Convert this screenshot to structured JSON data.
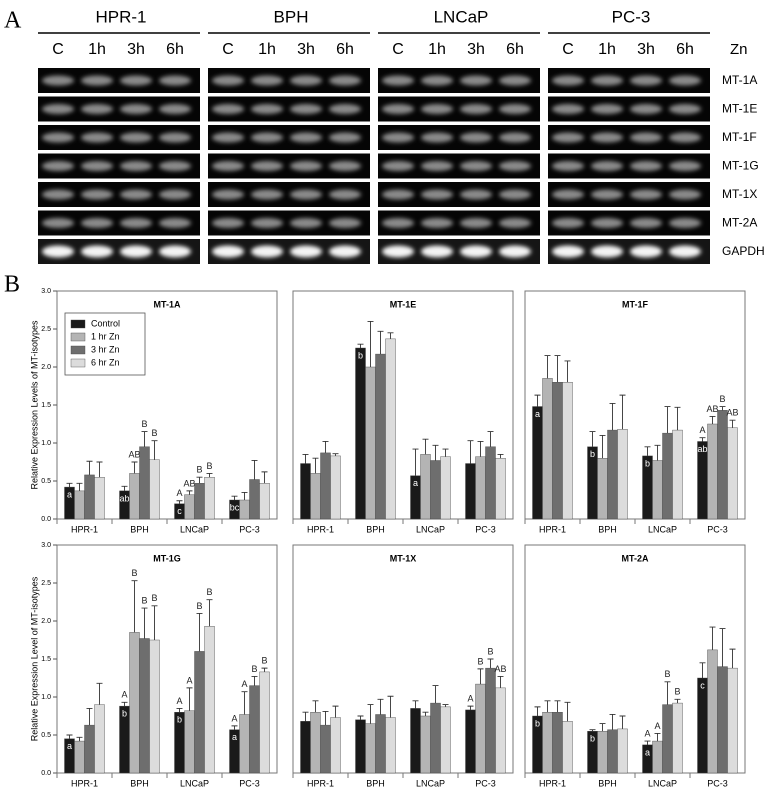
{
  "panel_labels": [
    "A",
    "B"
  ],
  "gel": {
    "cell_lines": [
      "HPR-1",
      "BPH",
      "LNCaP",
      "PC-3"
    ],
    "timepoints": [
      "C",
      "1h",
      "3h",
      "6h"
    ],
    "treatment": "Zn",
    "genes": [
      "MT-1A",
      "MT-1E",
      "MT-1F",
      "MT-1G",
      "MT-1X",
      "MT-2A",
      "GAPDH"
    ]
  },
  "chart_data": [
    {
      "type": "bar",
      "title": "MT-1A",
      "ylabel": "Relative Expression Levels of MT-isotypes",
      "categories": [
        "HPR-1",
        "BPH",
        "LNCaP",
        "PC-3"
      ],
      "ylim": [
        0,
        3
      ],
      "yticks": [
        {
          "value": 0,
          "label": "0.0"
        },
        0.5,
        {
          "value": 1,
          "label": "1.0"
        },
        1.5,
        {
          "value": 2,
          "label": "2.0"
        },
        2.5,
        {
          "value": 3,
          "label": "3.0"
        }
      ],
      "legend": "upper left",
      "series": [
        {
          "name": "Control",
          "color": "#1a1a1a",
          "values": [
            0.42,
            0.37,
            0.2,
            0.25
          ],
          "errors": [
            0.05,
            0.06,
            0.04,
            0.05
          ],
          "labels_inside": [
            "a",
            "ab",
            "c",
            "bc"
          ],
          "labels_above": [
            null,
            null,
            "A",
            null
          ]
        },
        {
          "name": "1 hr Zn",
          "color": "#b4b4b4",
          "values": [
            0.37,
            0.6,
            0.32,
            0.25
          ],
          "errors": [
            0.1,
            0.15,
            0.05,
            0.1
          ],
          "labels_inside": [
            null,
            null,
            null,
            null
          ],
          "labels_above": [
            null,
            "AB",
            "AB",
            null
          ]
        },
        {
          "name": "3 hr Zn",
          "color": "#6e6e6e",
          "values": [
            0.58,
            0.95,
            0.47,
            0.52
          ],
          "errors": [
            0.18,
            0.2,
            0.08,
            0.25
          ],
          "labels_inside": [
            null,
            null,
            null,
            null
          ],
          "labels_above": [
            null,
            "B",
            "B",
            null
          ]
        },
        {
          "name": "6 hr Zn",
          "color": "#dcdcdc",
          "values": [
            0.55,
            0.78,
            0.55,
            0.47
          ],
          "errors": [
            0.2,
            0.25,
            0.05,
            0.15
          ],
          "labels_inside": [
            null,
            null,
            null,
            null
          ],
          "labels_above": [
            null,
            "B",
            "B",
            null
          ]
        }
      ]
    },
    {
      "type": "bar",
      "title": "MT-1E",
      "categories": [
        "HPR-1",
        "BPH",
        "LNCaP",
        "PC-3"
      ],
      "ylim": [
        0,
        3
      ],
      "series": [
        {
          "color": "#1a1a1a",
          "values": [
            0.73,
            2.25,
            0.57,
            0.73
          ],
          "errors": [
            0.12,
            0.05,
            0.35,
            0.3
          ],
          "labels_inside": [
            null,
            "b",
            "a",
            null
          ],
          "labels_above": [
            null,
            null,
            null,
            null
          ]
        },
        {
          "color": "#b4b4b4",
          "values": [
            0.6,
            2.0,
            0.85,
            0.82
          ],
          "errors": [
            0.2,
            0.6,
            0.2,
            0.2
          ],
          "labels_inside": [
            null,
            null,
            null,
            null
          ],
          "labels_above": [
            null,
            null,
            null,
            null
          ]
        },
        {
          "color": "#6e6e6e",
          "values": [
            0.87,
            2.17,
            0.77,
            0.95
          ],
          "errors": [
            0.15,
            0.3,
            0.2,
            0.2
          ],
          "labels_inside": [
            null,
            null,
            null,
            null
          ],
          "labels_above": [
            null,
            null,
            null,
            null
          ]
        },
        {
          "color": "#dcdcdc",
          "values": [
            0.83,
            2.37,
            0.82,
            0.8
          ],
          "errors": [
            0.03,
            0.08,
            0.1,
            0.05
          ],
          "labels_inside": [
            null,
            null,
            null,
            null
          ],
          "labels_above": [
            null,
            null,
            null,
            null
          ]
        }
      ]
    },
    {
      "type": "bar",
      "title": "MT-1F",
      "categories": [
        "HPR-1",
        "BPH",
        "LNCaP",
        "PC-3"
      ],
      "ylim": [
        0,
        3
      ],
      "series": [
        {
          "color": "#1a1a1a",
          "values": [
            1.48,
            0.95,
            0.83,
            1.02
          ],
          "errors": [
            0.15,
            0.2,
            0.12,
            0.05
          ],
          "labels_inside": [
            "a",
            "b",
            "b",
            "ab"
          ],
          "labels_above": [
            null,
            null,
            null,
            "A"
          ]
        },
        {
          "color": "#b4b4b4",
          "values": [
            1.85,
            0.8,
            0.77,
            1.25
          ],
          "errors": [
            0.3,
            0.3,
            0.2,
            0.1
          ],
          "labels_inside": [
            null,
            null,
            null,
            null
          ],
          "labels_above": [
            null,
            null,
            null,
            "AB"
          ]
        },
        {
          "color": "#6e6e6e",
          "values": [
            1.8,
            1.17,
            1.13,
            1.43
          ],
          "errors": [
            0.35,
            0.35,
            0.35,
            0.05
          ],
          "labels_inside": [
            null,
            null,
            null,
            null
          ],
          "labels_above": [
            null,
            null,
            null,
            "B"
          ]
        },
        {
          "color": "#dcdcdc",
          "values": [
            1.8,
            1.18,
            1.17,
            1.2
          ],
          "errors": [
            0.28,
            0.45,
            0.3,
            0.1
          ],
          "labels_inside": [
            null,
            null,
            null,
            null
          ],
          "labels_above": [
            null,
            null,
            null,
            "AB"
          ]
        }
      ]
    },
    {
      "type": "bar",
      "title": "MT-1G",
      "ylabel": "Relative Expression Level of MT-isotypes",
      "categories": [
        "HPR-1",
        "BPH",
        "LNCaP",
        "PC-3"
      ],
      "ylim": [
        0,
        3
      ],
      "yticks": [
        {
          "value": 0,
          "label": "0.0"
        },
        0.5,
        {
          "value": 1,
          "label": "1.0"
        },
        1.5,
        {
          "value": 2,
          "label": "2.0"
        },
        2.5,
        {
          "value": 3,
          "label": "3.0"
        }
      ],
      "series": [
        {
          "color": "#1a1a1a",
          "values": [
            0.45,
            0.88,
            0.8,
            0.57
          ],
          "errors": [
            0.05,
            0.05,
            0.05,
            0.05
          ],
          "labels_inside": [
            "a",
            "b",
            "b",
            "a"
          ],
          "labels_above": [
            null,
            "A",
            "A",
            "A"
          ]
        },
        {
          "color": "#b4b4b4",
          "values": [
            0.42,
            1.85,
            0.82,
            0.77
          ],
          "errors": [
            0.05,
            0.68,
            0.3,
            0.3
          ],
          "labels_inside": [
            null,
            null,
            null,
            null
          ],
          "labels_above": [
            null,
            "B",
            "A",
            "A"
          ]
        },
        {
          "color": "#6e6e6e",
          "values": [
            0.63,
            1.77,
            1.6,
            1.15
          ],
          "errors": [
            0.22,
            0.4,
            0.5,
            0.12
          ],
          "labels_inside": [
            null,
            null,
            null,
            null
          ],
          "labels_above": [
            null,
            "B",
            "B",
            "B"
          ]
        },
        {
          "color": "#dcdcdc",
          "values": [
            0.9,
            1.75,
            1.93,
            1.33
          ],
          "errors": [
            0.28,
            0.45,
            0.35,
            0.05
          ],
          "labels_inside": [
            null,
            null,
            null,
            null
          ],
          "labels_above": [
            null,
            "B",
            "B",
            "B"
          ]
        }
      ]
    },
    {
      "type": "bar",
      "title": "MT-1X",
      "categories": [
        "HPR-1",
        "BPH",
        "LNCaP",
        "PC-3"
      ],
      "ylim": [
        0,
        3
      ],
      "series": [
        {
          "color": "#1a1a1a",
          "values": [
            0.68,
            0.7,
            0.85,
            0.83
          ],
          "errors": [
            0.12,
            0.05,
            0.1,
            0.05
          ],
          "labels_inside": [
            null,
            null,
            null,
            null
          ],
          "labels_above": [
            null,
            null,
            null,
            "A"
          ]
        },
        {
          "color": "#b4b4b4",
          "values": [
            0.8,
            0.65,
            0.75,
            1.17
          ],
          "errors": [
            0.15,
            0.25,
            0.05,
            0.2
          ],
          "labels_inside": [
            null,
            null,
            null,
            null
          ],
          "labels_above": [
            null,
            null,
            null,
            "B"
          ]
        },
        {
          "color": "#6e6e6e",
          "values": [
            0.63,
            0.77,
            0.92,
            1.38
          ],
          "errors": [
            0.18,
            0.2,
            0.23,
            0.12
          ],
          "labels_inside": [
            null,
            null,
            null,
            null
          ],
          "labels_above": [
            null,
            null,
            null,
            "B"
          ]
        },
        {
          "color": "#dcdcdc",
          "values": [
            0.73,
            0.73,
            0.87,
            1.12
          ],
          "errors": [
            0.15,
            0.28,
            0.03,
            0.15
          ],
          "labels_inside": [
            null,
            null,
            null,
            null
          ],
          "labels_above": [
            null,
            null,
            null,
            "AB"
          ]
        }
      ]
    },
    {
      "type": "bar",
      "title": "MT-2A",
      "categories": [
        "HPR-1",
        "BPH",
        "LNCaP",
        "PC-3"
      ],
      "ylim": [
        0,
        3
      ],
      "series": [
        {
          "color": "#1a1a1a",
          "values": [
            0.75,
            0.55,
            0.37,
            1.25
          ],
          "errors": [
            0.12,
            0.02,
            0.05,
            0.2
          ],
          "labels_inside": [
            "b",
            "b",
            "a",
            "c"
          ],
          "labels_above": [
            null,
            null,
            "A",
            null
          ]
        },
        {
          "color": "#b4b4b4",
          "values": [
            0.8,
            0.55,
            0.42,
            1.62
          ],
          "errors": [
            0.15,
            0.1,
            0.1,
            0.3
          ],
          "labels_inside": [
            null,
            null,
            null,
            null
          ],
          "labels_above": [
            null,
            null,
            "A",
            null
          ]
        },
        {
          "color": "#6e6e6e",
          "values": [
            0.8,
            0.57,
            0.9,
            1.4
          ],
          "errors": [
            0.15,
            0.2,
            0.3,
            0.5
          ],
          "labels_inside": [
            null,
            null,
            null,
            null
          ],
          "labels_above": [
            null,
            null,
            "B",
            null
          ]
        },
        {
          "color": "#dcdcdc",
          "values": [
            0.68,
            0.58,
            0.92,
            1.38
          ],
          "errors": [
            0.25,
            0.17,
            0.05,
            0.25
          ],
          "labels_inside": [
            null,
            null,
            null,
            null
          ],
          "labels_above": [
            null,
            null,
            "B",
            null
          ]
        }
      ]
    }
  ]
}
